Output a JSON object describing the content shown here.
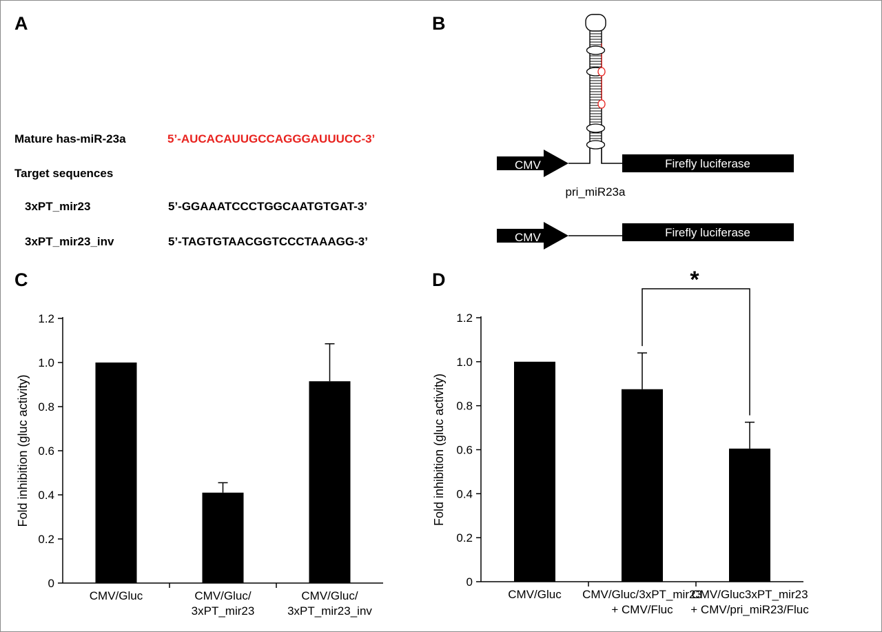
{
  "panels": {
    "A": {
      "letter": "A",
      "mature_label": "Mature has-miR-23a",
      "mature_sequence": "5’-AUCACAUUGCCAGGGAUUUCC-3’",
      "mature_color": "#e8231f",
      "target_heading": "Target sequences",
      "targets": [
        {
          "name": "3xPT_mir23",
          "sequence": "5’-GGAAATCCCTGGCAATGTGAT-3’"
        },
        {
          "name": "3xPT_mir23_inv",
          "sequence": "5’-TAGTGTAACGGTCCCTAAAGG-3’"
        }
      ]
    },
    "B": {
      "letter": "B",
      "constructs": [
        {
          "promoter": "CMV",
          "insert_label": "pri_miR23a",
          "insert": "hairpin",
          "gene": "Firefly luciferase"
        },
        {
          "promoter": "CMV",
          "insert": "none",
          "gene": "Firefly luciferase"
        }
      ],
      "hairpin_highlight_color": "#e8231f"
    },
    "C": {
      "letter": "C"
    },
    "D": {
      "letter": "D",
      "significance_mark": "*"
    }
  },
  "chart_data": [
    {
      "panel": "C",
      "type": "bar",
      "categories": [
        "CMV/Gluc",
        "CMV/Gluc/\n3xPT_mir23",
        "CMV/Gluc/\n3xPT_mir23_inv"
      ],
      "values": [
        1.0,
        0.41,
        0.915
      ],
      "errors": [
        0,
        0.045,
        0.17
      ],
      "ylabel": "Fold inhibition (gluc activity)",
      "ylim": [
        0,
        1.2
      ],
      "yticks": [
        "0",
        "0.2",
        "0.4",
        "0.6",
        "0.8",
        "1.0",
        "1.2"
      ],
      "bar_color": "#000000"
    },
    {
      "panel": "D",
      "type": "bar",
      "categories": [
        "CMV/Gluc",
        "CMV/Gluc/3xPT_mir23\n+ CMV/Fluc",
        "CMV/Gluc3xPT_mir23\n+ CMV/pri_miR23/Fluc"
      ],
      "values": [
        1.0,
        0.875,
        0.605
      ],
      "errors": [
        0,
        0.165,
        0.12
      ],
      "ylabel": "Fold inhibition (gluc activity)",
      "ylim": [
        0,
        1.2
      ],
      "yticks": [
        "0",
        "0.2",
        "0.4",
        "0.6",
        "0.8",
        "1.0",
        "1.2"
      ],
      "bar_color": "#000000",
      "significance": {
        "between": [
          1,
          2
        ],
        "label": "*"
      }
    }
  ]
}
